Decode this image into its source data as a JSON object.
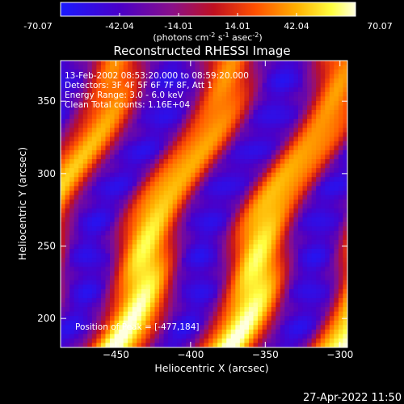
{
  "chart_data": {
    "type": "heatmap",
    "title": "Reconstructed RHESSI Image",
    "xlabel": "Heliocentric X (arcsec)",
    "ylabel": "Heliocentric Y (arcsec)",
    "xlim": [
      -487,
      -295
    ],
    "ylim": [
      180,
      378
    ],
    "xticks": [
      -450,
      -400,
      -350,
      -300
    ],
    "yticks": [
      200,
      250,
      300,
      350
    ],
    "colorbar": {
      "ticks": [
        "-70.07",
        "-42.04",
        "-14.01",
        "14.01",
        "42.04",
        "70.07"
      ],
      "range": [
        -70.07,
        70.07
      ],
      "unit_main": "(photons cm",
      "unit_exp1": "-2",
      "unit_mid": " s",
      "unit_exp2": "-1",
      "unit_end": " asec",
      "unit_exp3": "-2",
      "unit_close": ")"
    },
    "annotations": [
      "13-Feb-2002 08:53:20.000 to 08:59:20.000",
      "Detectors: 3F 4F 5F 6F 7F 8F, Att 1",
      "Energy Range: 3.0 - 6.0 keV",
      "Clean     Total counts: 1.16E+04"
    ],
    "peak_label": "Position of Peak = [-477,184]",
    "peak": [
      -477,
      184
    ]
  },
  "timestamp": "27-Apr-2022 11:50"
}
